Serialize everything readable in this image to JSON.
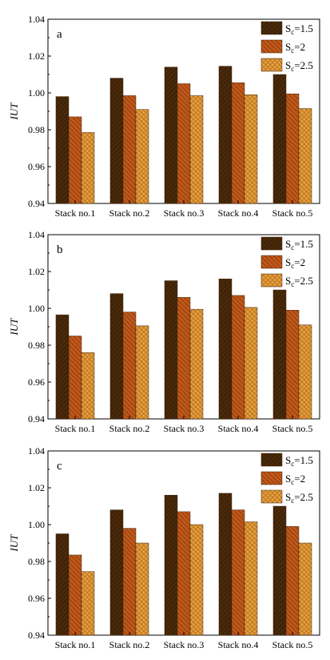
{
  "colors": {
    "s1": "#4a2a0a",
    "s1_stripe": "#2a1503",
    "s2": "#c0581a",
    "s2_stripe": "#7a3208",
    "s3": "#e8a040",
    "s3_stripe": "#b06d1a",
    "axis": "#000000"
  },
  "chart_data": [
    {
      "type": "bar",
      "panel_label": "a",
      "ylabel": "IUT",
      "ylim": [
        0.94,
        1.04
      ],
      "yticks": [
        "0.94",
        "0.96",
        "0.98",
        "1.00",
        "1.02",
        "1.04"
      ],
      "categories": [
        "Stack no.1",
        "Stack no.2",
        "Stack no.3",
        "Stack no.4",
        "Stack no.5"
      ],
      "legend_position": "top-right",
      "series": [
        {
          "name": "S",
          "sub": "c",
          "suffix": "=1.5",
          "values": [
            0.998,
            1.008,
            1.014,
            1.0145,
            1.01
          ]
        },
        {
          "name": "S",
          "sub": "c",
          "suffix": "=2",
          "values": [
            0.987,
            0.9985,
            1.005,
            1.0055,
            0.9995
          ]
        },
        {
          "name": "S",
          "sub": "c",
          "suffix": "=2.5",
          "values": [
            0.9785,
            0.991,
            0.9985,
            0.999,
            0.9915
          ]
        }
      ]
    },
    {
      "type": "bar",
      "panel_label": "b",
      "ylabel": "IUT",
      "ylim": [
        0.94,
        1.04
      ],
      "yticks": [
        "0.94",
        "0.96",
        "0.98",
        "1.00",
        "1.02",
        "1.04"
      ],
      "categories": [
        "Stack no.1",
        "Stack no.2",
        "Stack no.3",
        "Stack no.4",
        "Stack no.5"
      ],
      "legend_position": "top-right",
      "series": [
        {
          "name": "S",
          "sub": "c",
          "suffix": "=1.5",
          "values": [
            0.9965,
            1.008,
            1.015,
            1.016,
            1.01
          ]
        },
        {
          "name": "S",
          "sub": "c",
          "suffix": "=2",
          "values": [
            0.985,
            0.998,
            1.006,
            1.007,
            0.999
          ]
        },
        {
          "name": "S",
          "sub": "c",
          "suffix": "=2.5",
          "values": [
            0.976,
            0.9905,
            0.9995,
            1.0005,
            0.991
          ]
        }
      ]
    },
    {
      "type": "bar",
      "panel_label": "c",
      "ylabel": "IUT",
      "ylim": [
        0.94,
        1.04
      ],
      "yticks": [
        "0.94",
        "0.96",
        "0.98",
        "1.00",
        "1.02",
        "1.04"
      ],
      "categories": [
        "Stack no.1",
        "Stack no.2",
        "Stack no.3",
        "Stack no.4",
        "Stack no.5"
      ],
      "legend_position": "top-right",
      "series": [
        {
          "name": "S",
          "sub": "c",
          "suffix": "=1.5",
          "values": [
            0.995,
            1.008,
            1.016,
            1.017,
            1.01
          ]
        },
        {
          "name": "S",
          "sub": "c",
          "suffix": "=2",
          "values": [
            0.9835,
            0.998,
            1.007,
            1.008,
            0.999
          ]
        },
        {
          "name": "S",
          "sub": "c",
          "suffix": "=2.5",
          "values": [
            0.9745,
            0.99,
            1.0,
            1.0015,
            0.99
          ]
        }
      ]
    }
  ]
}
